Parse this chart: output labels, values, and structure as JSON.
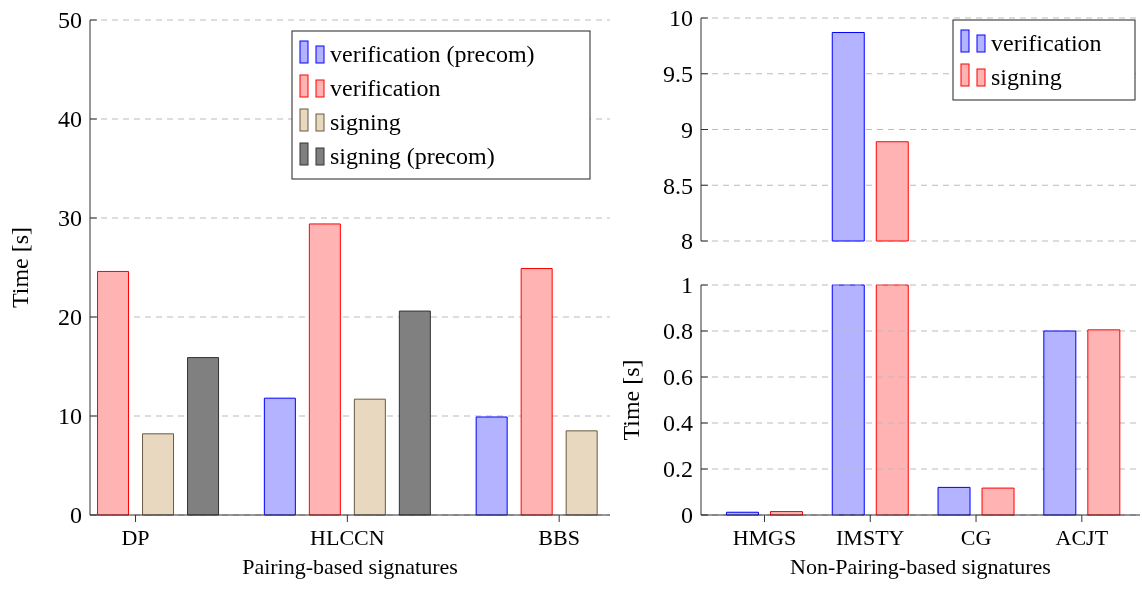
{
  "chart_data": [
    {
      "type": "bar",
      "xlabel": "Pairing-based signatures",
      "ylabel": "Time [s]",
      "categories": [
        "DP",
        "HLCCN",
        "BBS"
      ],
      "ylim": [
        0,
        50
      ],
      "yticks": [
        0,
        10,
        20,
        30,
        40,
        50
      ],
      "grid": "y",
      "legend": "top right",
      "series": [
        {
          "name": "verification (precom)",
          "color": "#b3b3ff",
          "values": [
            null,
            11.8,
            9.9
          ]
        },
        {
          "name": "verification",
          "color": "#ffb3b3",
          "values": [
            24.6,
            29.4,
            24.9
          ]
        },
        {
          "name": "signing",
          "color": "#e8d8c0",
          "values": [
            8.2,
            11.7,
            8.5
          ]
        },
        {
          "name": "signing (precom)",
          "color": "#808080",
          "values": [
            15.9,
            20.6,
            null
          ]
        }
      ]
    },
    {
      "type": "bar",
      "categories": [
        null,
        null,
        null,
        null
      ],
      "ylim": [
        8,
        10
      ],
      "yticks": [
        8,
        8.5,
        9,
        9.5,
        10
      ],
      "grid": "y",
      "legend": "top right",
      "tick_labels": "y",
      "series": [
        {
          "name": "verification",
          "color": "#b3b3ff",
          "values": [
            null,
            9.87,
            null,
            null
          ]
        },
        {
          "name": "signing",
          "color": "#ffb3b3",
          "values": [
            null,
            8.89,
            null,
            null
          ]
        }
      ]
    },
    {
      "type": "bar",
      "xlabel": "Non-Pairing-based signatures",
      "ylabel": "Time [s]",
      "categories": [
        "HMGS",
        "IMSTY",
        "CG",
        "ACJT"
      ],
      "ylim": [
        0,
        1
      ],
      "yticks": [
        0,
        0.2,
        0.4,
        0.6,
        0.8,
        1
      ],
      "grid": "y",
      "series": [
        {
          "color": "#b3b3ff",
          "values": [
            0.012,
            null,
            0.12,
            0.8
          ]
        },
        {
          "color": "#ffb3b3",
          "values": [
            0.015,
            null,
            0.117,
            0.805
          ]
        }
      ]
    }
  ]
}
